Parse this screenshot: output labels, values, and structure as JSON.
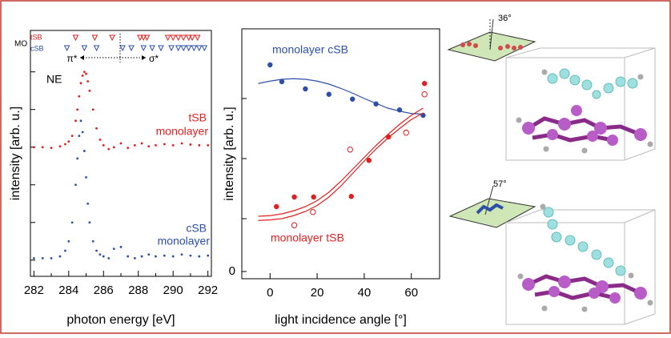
{
  "chart_data": [
    {
      "type": "scatter",
      "x_label": "photon energy [eV]",
      "y_label": "intensity [arb. u.]",
      "xlim": [
        281.8,
        292.2
      ],
      "xticks": [
        282,
        284,
        286,
        288,
        290,
        292
      ],
      "xminor": [
        283,
        285,
        287,
        289,
        291
      ],
      "ylim": [
        -0.43,
        6.1
      ],
      "yminor": [
        0,
        1,
        2,
        3,
        4,
        5
      ],
      "series": [
        {
          "color": "#e02020",
          "mode": "markers",
          "x": [
            282,
            282.5,
            283,
            283.5,
            283.8,
            284.0,
            284.2,
            284.4,
            284.5,
            284.6,
            284.7,
            284.8,
            284.9,
            285.0,
            285.1,
            285.2,
            285.4,
            285.6,
            285.8,
            286.0,
            286.3,
            286.6,
            287.0,
            287.4,
            287.8,
            288.2,
            288.6,
            289,
            289.5,
            290,
            290.5,
            291,
            291.5,
            292
          ],
          "values": [
            3.0,
            3.0,
            2.98,
            3.02,
            3.08,
            3.15,
            3.3,
            3.7,
            4.0,
            4.35,
            4.7,
            4.9,
            5.0,
            4.95,
            4.75,
            4.5,
            4.0,
            3.5,
            3.2,
            3.05,
            2.95,
            3.0,
            3.1,
            2.98,
            3.05,
            3.1,
            3.02,
            3.05,
            3.08,
            3.05,
            3.1,
            3.07,
            3.05,
            3.05
          ]
        },
        {
          "color": "#2c4fa8",
          "mode": "markers",
          "x": [
            282,
            282.5,
            283,
            283.5,
            283.8,
            284.0,
            284.2,
            284.4,
            284.5,
            284.6,
            284.7,
            284.8,
            284.9,
            285.0,
            285.1,
            285.2,
            285.4,
            285.6,
            285.8,
            286.0,
            286.3,
            286.6,
            287.0,
            287.4,
            287.8,
            288.2,
            288.6,
            289,
            289.5,
            290,
            290.5,
            291,
            291.5,
            292
          ],
          "values": [
            0.05,
            0.05,
            0.05,
            0.1,
            0.25,
            0.5,
            1.0,
            2.0,
            2.7,
            3.3,
            3.7,
            3.4,
            2.9,
            2.2,
            1.5,
            1.0,
            0.5,
            0.25,
            0.15,
            0.1,
            0.05,
            0.3,
            0.35,
            0.1,
            0.05,
            0.1,
            0.15,
            0.1,
            0.12,
            0.1,
            0.15,
            0.12,
            0.1,
            0.12
          ]
        }
      ],
      "mo_levels": [
        {
          "color": "#e02020",
          "values": [
            284.4,
            285.5,
            286.5,
            288.1,
            288.3,
            288.5,
            289.7,
            290.0,
            290.3,
            290.6,
            290.9,
            291.1,
            291.4
          ]
        },
        {
          "color": "#2c4fa8",
          "values": [
            283.9,
            284.9,
            285.6,
            287.1,
            287.6,
            288.3,
            288.8,
            289.3,
            289.9,
            290.3,
            290.6,
            290.9,
            291.2,
            291.5,
            291.8
          ]
        }
      ],
      "annotations": [
        {
          "text": "NE",
          "color": "#000000"
        },
        {
          "text": "tSB",
          "color": "#e02020"
        },
        {
          "text": "monolayer",
          "color": "#e02020"
        },
        {
          "text": "cSB",
          "color": "#2c4fa8"
        },
        {
          "text": "monolayer",
          "color": "#2c4fa8"
        },
        {
          "text": "MO",
          "color": "#000000"
        },
        {
          "text": "tSB",
          "color": "#e02020"
        },
        {
          "text": "cSB",
          "color": "#2c4fa8"
        },
        {
          "text": "π*",
          "color": "#000000"
        },
        {
          "text": "σ*",
          "color": "#000000"
        }
      ]
    },
    {
      "type": "scatter",
      "x_label": "light incidence angle [°]",
      "y_label": "intensity [arb. u.]",
      "xlim": [
        -12,
        72
      ],
      "xticks": [
        0,
        20,
        40,
        60
      ],
      "xminor": [],
      "ylim": [
        -0.12,
        4.04
      ],
      "yticks": [
        0
      ],
      "yminor": [
        0.88,
        1.88,
        2.88
      ],
      "series": [
        {
          "color": "#2c4fa8",
          "mode": "markers",
          "marker": "filled",
          "x": [
            0,
            5,
            15,
            25,
            35,
            45,
            55,
            65
          ],
          "values": [
            3.44,
            3.16,
            3.04,
            2.95,
            2.87,
            2.79,
            2.69,
            2.6
          ]
        },
        {
          "color": "#e02020",
          "mode": "markers",
          "marker": "filled",
          "x": [
            2.7,
            10.3,
            18.5,
            34.5,
            42,
            50.3,
            57.8,
            65.6
          ],
          "values": [
            1.08,
            1.24,
            1.24,
            1.25,
            1.85,
            2.24,
            2.32,
            3.13
          ]
        },
        {
          "color": "#e02020",
          "mode": "markers",
          "marker": "open",
          "x": [
            10.3,
            18.2,
            34,
            57.8,
            65.6
          ],
          "values": [
            0.77,
            0.99,
            2.03,
            2.31,
            2.95
          ]
        },
        {
          "color": "#2c4fa8",
          "mode": "line",
          "x": [
            -5,
            0,
            5,
            10,
            15,
            20,
            25,
            30,
            35,
            40,
            45,
            50,
            55,
            60,
            65
          ],
          "values": [
            3.13,
            3.17,
            3.2,
            3.21,
            3.2,
            3.17,
            3.12,
            3.05,
            2.97,
            2.88,
            2.8,
            2.72,
            2.67,
            2.63,
            2.62
          ]
        },
        {
          "color": "#e02020",
          "mode": "line",
          "x": [
            -5,
            0,
            5,
            10,
            15,
            20,
            25,
            30,
            35,
            40,
            45,
            50,
            55,
            60,
            65
          ],
          "values": [
            0.92,
            0.93,
            0.96,
            1.01,
            1.08,
            1.18,
            1.32,
            1.5,
            1.7,
            1.9,
            2.1,
            2.28,
            2.45,
            2.6,
            2.72
          ]
        },
        {
          "color": "#e02020",
          "mode": "line",
          "x": [
            -5,
            0,
            5,
            10,
            15,
            20,
            25,
            30,
            35,
            40,
            45,
            50,
            55,
            60,
            65
          ],
          "values": [
            0.85,
            0.86,
            0.88,
            0.93,
            1.0,
            1.1,
            1.24,
            1.42,
            1.63,
            1.84,
            2.04,
            2.22,
            2.38,
            2.53,
            2.64
          ]
        }
      ],
      "annotations": [
        {
          "text": "monolayer cSB",
          "color": "#2c4fa8"
        },
        {
          "text": "monolayer tSB",
          "color": "#e02020"
        }
      ]
    }
  ],
  "tilt_labels": [
    "36°",
    "57°"
  ]
}
